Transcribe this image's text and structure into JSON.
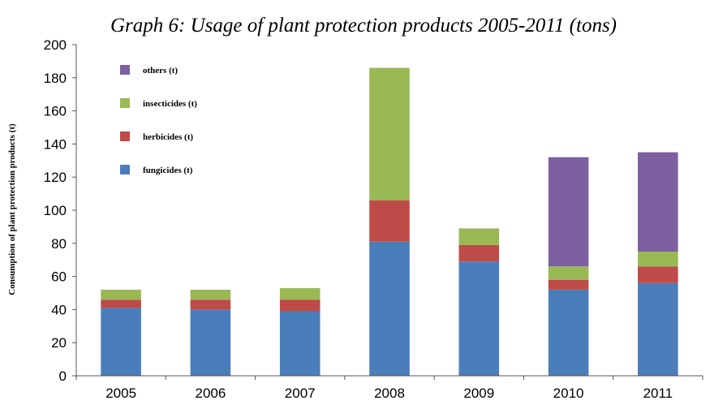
{
  "chart_data": {
    "type": "bar",
    "stacked": true,
    "title": "Graph 6: Usage of plant protection products 2005-2011 (tons)",
    "xlabel": "",
    "ylabel": "Consumption of plant protection products (t)",
    "ylim": [
      0,
      200
    ],
    "yticks": [
      "0",
      "20",
      "40",
      "60",
      "80",
      "100",
      "120",
      "140",
      "160",
      "180",
      "200"
    ],
    "categories": [
      "2005",
      "2006",
      "2007",
      "2008",
      "2009",
      "2010",
      "2011"
    ],
    "series": [
      {
        "name": "fungicides (t)",
        "color": "#4a7ebb",
        "values": [
          41,
          40,
          39,
          81,
          69,
          52,
          56
        ]
      },
      {
        "name": "herbicides (t)",
        "color": "#be4b48",
        "values": [
          5,
          6,
          7,
          25,
          10,
          6,
          10
        ]
      },
      {
        "name": "insecticides (t)",
        "color": "#98b954",
        "values": [
          6,
          6,
          7,
          80,
          10,
          8,
          9
        ]
      },
      {
        "name": "others (t)",
        "color": "#7d60a0",
        "values": [
          0,
          0,
          0,
          0,
          0,
          66,
          60
        ]
      }
    ],
    "legend": {
      "position": "top-left",
      "order": [
        "others (t)",
        "insecticides (t)",
        "herbicides (t)",
        "fungicides (t)"
      ]
    },
    "grid": false
  }
}
